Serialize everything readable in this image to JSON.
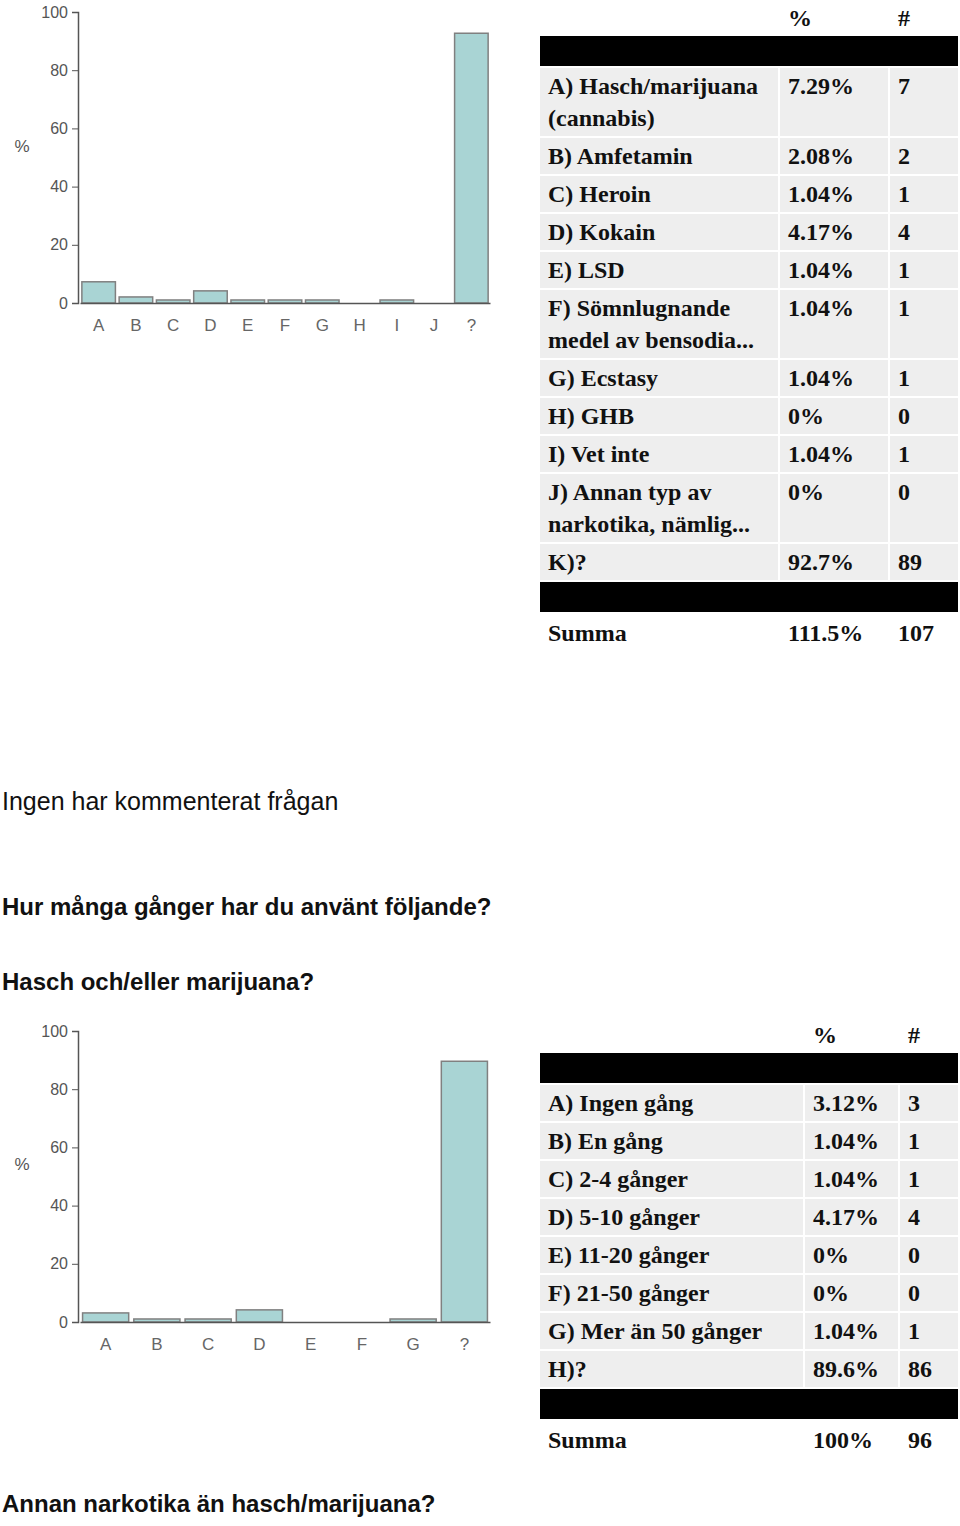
{
  "chart_data": [
    {
      "type": "bar",
      "ylabel": "%",
      "categories": [
        "A",
        "B",
        "C",
        "D",
        "E",
        "F",
        "G",
        "H",
        "I",
        "J",
        "?"
      ],
      "values": [
        7.29,
        2.08,
        1.04,
        4.17,
        1.04,
        1.04,
        1.04,
        0,
        1.04,
        0,
        92.7
      ],
      "color": "#a9d4d4",
      "ylim": [
        0,
        100
      ],
      "yticks": [
        0,
        20,
        40,
        60,
        80,
        100
      ],
      "grid": false
    },
    {
      "type": "bar",
      "ylabel": "%",
      "categories": [
        "A",
        "B",
        "C",
        "D",
        "E",
        "F",
        "G",
        "?"
      ],
      "values": [
        3.12,
        1.04,
        1.04,
        4.17,
        0,
        0,
        1.04,
        89.6
      ],
      "color": "#a9d4d4",
      "ylim": [
        0,
        100
      ],
      "yticks": [
        0,
        20,
        40,
        60,
        80,
        100
      ],
      "grid": false
    }
  ],
  "document": {
    "tables": [
      {
        "header": [
          "%",
          "#"
        ],
        "rows": [
          [
            "A) Hasch/marijuana (cannabis)",
            "7.29%",
            "7"
          ],
          [
            "B) Amfetamin",
            "2.08%",
            "2"
          ],
          [
            "C) Heroin",
            "1.04%",
            "1"
          ],
          [
            "D) Kokain",
            "4.17%",
            "4"
          ],
          [
            "E) LSD",
            "1.04%",
            "1"
          ],
          [
            "F) Sömnlugnande medel av bensodia...",
            "1.04%",
            "1"
          ],
          [
            "G) Ecstasy",
            "1.04%",
            "1"
          ],
          [
            "H) GHB",
            "0%",
            "0"
          ],
          [
            "I) Vet inte",
            "1.04%",
            "1"
          ],
          [
            "J) Annan typ av narkotika, nämlig...",
            "0%",
            "0"
          ],
          [
            "K)?",
            "92.7%",
            "89"
          ]
        ],
        "total": [
          "Summa",
          "111.5%",
          "107"
        ]
      },
      {
        "header": [
          "%",
          "#"
        ],
        "rows": [
          [
            "A) Ingen gång",
            "3.12%",
            "3"
          ],
          [
            "B) En gång",
            "1.04%",
            "1"
          ],
          [
            "C) 2-4 gånger",
            "1.04%",
            "1"
          ],
          [
            "D) 5-10 gånger",
            "4.17%",
            "4"
          ],
          [
            "E) 11-20 gånger",
            "0%",
            "0"
          ],
          [
            "F) 21-50 gånger",
            "0%",
            "0"
          ],
          [
            "G) Mer än 50 gånger",
            "1.04%",
            "1"
          ],
          [
            "H)?",
            "89.6%",
            "86"
          ]
        ],
        "total": [
          "Summa",
          "100%",
          "96"
        ]
      }
    ],
    "comment": "Ingen har kommenterat frågan",
    "heading": "Hur många gånger har du använt följande?",
    "question": "Hasch och/eller marijuana?",
    "next_question": "Annan narkotika än hasch/marijuana?"
  }
}
